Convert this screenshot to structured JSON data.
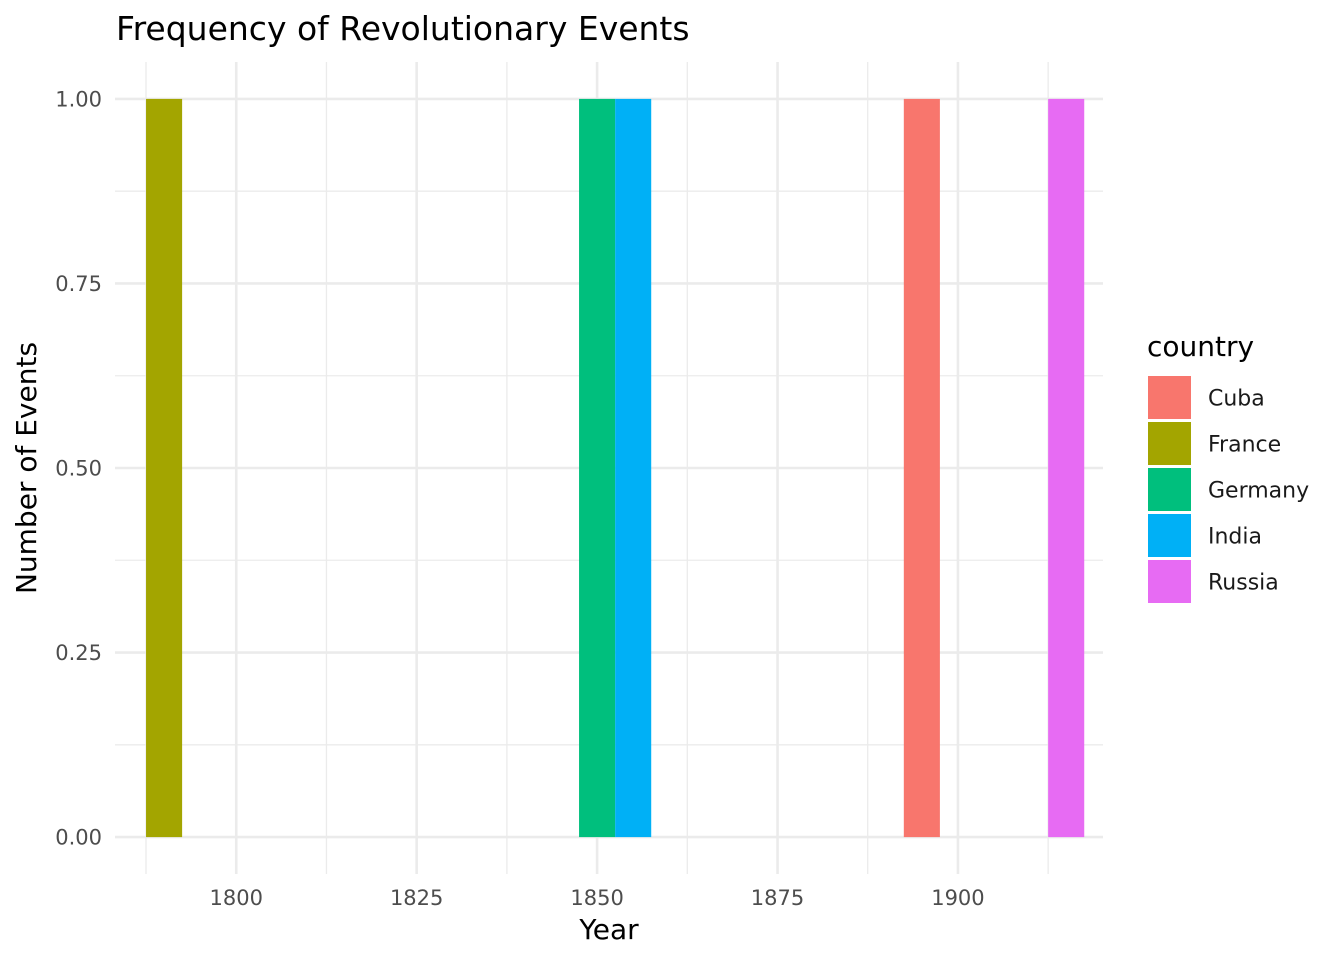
{
  "chart_data": {
    "type": "bar",
    "title": "Frequency of Revolutionary Events",
    "xlabel": "Year",
    "ylabel": "Number of Events",
    "xlim": [
      1783.2,
      1920.1
    ],
    "ylim": [
      -0.05,
      1.05
    ],
    "x_ticks": [
      {
        "value": 1800,
        "label": "1800"
      },
      {
        "value": 1825,
        "label": "1825"
      },
      {
        "value": 1850,
        "label": "1850"
      },
      {
        "value": 1875,
        "label": "1875"
      },
      {
        "value": 1900,
        "label": "1900"
      }
    ],
    "y_ticks": [
      {
        "value": 0,
        "label": "0.00"
      },
      {
        "value": 0.25,
        "label": "0.25"
      },
      {
        "value": 0.5,
        "label": "0.50"
      },
      {
        "value": 0.75,
        "label": "0.75"
      },
      {
        "value": 1,
        "label": "1.00"
      }
    ],
    "bin_width": 5,
    "grid": true,
    "legend": {
      "title": "country",
      "position": "right"
    },
    "series": [
      {
        "name": "Cuba",
        "color": "#F8766D",
        "bins": [
          {
            "x": 1895,
            "count": 1
          }
        ]
      },
      {
        "name": "France",
        "color": "#A3A500",
        "bins": [
          {
            "x": 1790,
            "count": 1
          }
        ]
      },
      {
        "name": "Germany",
        "color": "#00BF7D",
        "bins": [
          {
            "x": 1850,
            "count": 1
          }
        ]
      },
      {
        "name": "India",
        "color": "#00B0F6",
        "bins": [
          {
            "x": 1855,
            "count": 1
          }
        ]
      },
      {
        "name": "Russia",
        "color": "#E76BF3",
        "bins": [
          {
            "x": 1915,
            "count": 1
          }
        ]
      }
    ]
  }
}
